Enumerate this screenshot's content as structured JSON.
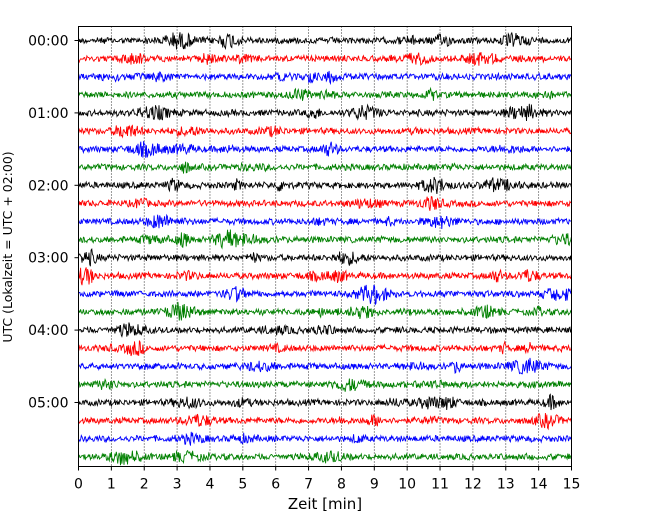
{
  "chart_data": {
    "type": "line",
    "title": "",
    "xlabel": "Zeit  [min]",
    "ylabel": "UTC (Lokalzeit = UTC + 02:00)",
    "xlim": [
      0,
      15
    ],
    "x_ticks": [
      0,
      1,
      2,
      3,
      4,
      5,
      6,
      7,
      8,
      9,
      10,
      11,
      12,
      13,
      14,
      15
    ],
    "x_tick_labels": [
      "0",
      "1",
      "2",
      "3",
      "4",
      "5",
      "6",
      "7",
      "8",
      "9",
      "10",
      "11",
      "12",
      "13",
      "14",
      "15"
    ],
    "y_tick_labels": [
      "00:00",
      "01:00",
      "02:00",
      "03:00",
      "04:00",
      "05:00"
    ],
    "grid": "vertical dotted",
    "legend": "none",
    "trace_interval_min": 15,
    "traces": [
      {
        "start": "00:00",
        "color": "#000000"
      },
      {
        "start": "00:15",
        "color": "#ff0000"
      },
      {
        "start": "00:30",
        "color": "#0000ff"
      },
      {
        "start": "00:45",
        "color": "#008000"
      },
      {
        "start": "01:00",
        "color": "#000000"
      },
      {
        "start": "01:15",
        "color": "#ff0000"
      },
      {
        "start": "01:30",
        "color": "#0000ff"
      },
      {
        "start": "01:45",
        "color": "#008000"
      },
      {
        "start": "02:00",
        "color": "#000000"
      },
      {
        "start": "02:15",
        "color": "#ff0000"
      },
      {
        "start": "02:30",
        "color": "#0000ff"
      },
      {
        "start": "02:45",
        "color": "#008000"
      },
      {
        "start": "03:00",
        "color": "#000000"
      },
      {
        "start": "03:15",
        "color": "#ff0000"
      },
      {
        "start": "03:30",
        "color": "#0000ff"
      },
      {
        "start": "03:45",
        "color": "#008000"
      },
      {
        "start": "04:00",
        "color": "#000000"
      },
      {
        "start": "04:15",
        "color": "#ff0000"
      },
      {
        "start": "04:30",
        "color": "#0000ff"
      },
      {
        "start": "04:45",
        "color": "#008000"
      },
      {
        "start": "05:00",
        "color": "#000000"
      },
      {
        "start": "05:15",
        "color": "#ff0000"
      },
      {
        "start": "05:30",
        "color": "#0000ff"
      },
      {
        "start": "05:45",
        "color": "#008000"
      }
    ]
  }
}
